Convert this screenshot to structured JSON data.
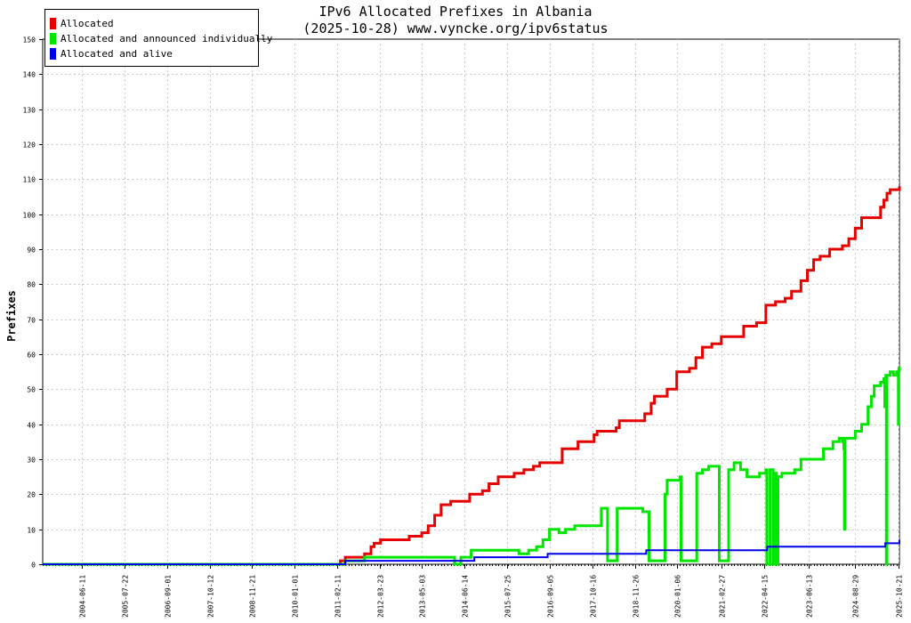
{
  "chart_data": {
    "type": "line",
    "title": "IPv6 Allocated Prefixes in Albania",
    "subtitle": "(2025-10-28) www.vyncke.org/ipv6status",
    "ylabel": "Prefixes",
    "xlabel": "",
    "ylim": [
      0,
      150
    ],
    "xlim": [
      "2003-06-01",
      "2025-10-28"
    ],
    "y_ticks": [
      0,
      10,
      20,
      30,
      40,
      50,
      60,
      70,
      80,
      90,
      100,
      110,
      120,
      130,
      140,
      150
    ],
    "x_tick_labels": [
      "2004-06-11",
      "2005-07-22",
      "2006-09-01",
      "2007-10-12",
      "2008-11-21",
      "2010-01-01",
      "2011-02-11",
      "2012-03-23",
      "2013-05-03",
      "2014-06-14",
      "2015-07-25",
      "2016-09-05",
      "2017-10-16",
      "2018-11-26",
      "2020-01-06",
      "2021-02-27",
      "2022-04-15",
      "2023-06-13",
      "2024-08-29",
      "2025-10-21"
    ],
    "grid": true,
    "legend_position": "top-left",
    "series": [
      {
        "name": "Allocated",
        "color": "#e60000",
        "points": [
          [
            "2003-06-01",
            0
          ],
          [
            "2011-03-01",
            0
          ],
          [
            "2011-03-15",
            1
          ],
          [
            "2011-05-01",
            2
          ],
          [
            "2011-09-01",
            2
          ],
          [
            "2011-11-01",
            3
          ],
          [
            "2012-01-01",
            5
          ],
          [
            "2012-02-01",
            6
          ],
          [
            "2012-04-01",
            7
          ],
          [
            "2012-12-01",
            7
          ],
          [
            "2013-01-01",
            8
          ],
          [
            "2013-05-01",
            9
          ],
          [
            "2013-07-01",
            11
          ],
          [
            "2013-09-01",
            14
          ],
          [
            "2013-11-01",
            17
          ],
          [
            "2014-02-01",
            18
          ],
          [
            "2014-06-01",
            18
          ],
          [
            "2014-08-01",
            20
          ],
          [
            "2014-12-01",
            21
          ],
          [
            "2015-02-01",
            23
          ],
          [
            "2015-05-01",
            25
          ],
          [
            "2015-10-01",
            26
          ],
          [
            "2016-01-01",
            27
          ],
          [
            "2016-04-01",
            28
          ],
          [
            "2016-06-01",
            29
          ],
          [
            "2016-12-01",
            29
          ],
          [
            "2017-01-01",
            33
          ],
          [
            "2017-06-01",
            35
          ],
          [
            "2017-11-01",
            37
          ],
          [
            "2017-12-01",
            38
          ],
          [
            "2018-06-01",
            39
          ],
          [
            "2018-07-01",
            41
          ],
          [
            "2019-01-01",
            41
          ],
          [
            "2019-03-01",
            43
          ],
          [
            "2019-05-01",
            46
          ],
          [
            "2019-06-01",
            48
          ],
          [
            "2019-10-01",
            50
          ],
          [
            "2020-01-01",
            55
          ],
          [
            "2020-05-01",
            56
          ],
          [
            "2020-07-01",
            59
          ],
          [
            "2020-09-01",
            62
          ],
          [
            "2020-12-01",
            63
          ],
          [
            "2021-03-01",
            65
          ],
          [
            "2021-08-01",
            65
          ],
          [
            "2021-10-01",
            68
          ],
          [
            "2022-02-01",
            69
          ],
          [
            "2022-05-01",
            74
          ],
          [
            "2022-08-01",
            75
          ],
          [
            "2022-11-01",
            76
          ],
          [
            "2023-01-01",
            78
          ],
          [
            "2023-04-01",
            81
          ],
          [
            "2023-06-01",
            84
          ],
          [
            "2023-08-01",
            87
          ],
          [
            "2023-10-01",
            88
          ],
          [
            "2024-01-01",
            90
          ],
          [
            "2024-05-01",
            91
          ],
          [
            "2024-07-01",
            93
          ],
          [
            "2024-09-01",
            96
          ],
          [
            "2024-11-01",
            99
          ],
          [
            "2025-04-01",
            99
          ],
          [
            "2025-05-01",
            102
          ],
          [
            "2025-06-01",
            104
          ],
          [
            "2025-07-01",
            106
          ],
          [
            "2025-08-01",
            107
          ],
          [
            "2025-10-15",
            107
          ],
          [
            "2025-10-28",
            108
          ]
        ]
      },
      {
        "name": "Allocated and announced individually",
        "color": "#00e600",
        "points": [
          [
            "2003-06-01",
            0
          ],
          [
            "2011-03-01",
            0
          ],
          [
            "2011-05-01",
            1
          ],
          [
            "2011-09-01",
            1
          ],
          [
            "2011-11-01",
            2
          ],
          [
            "2014-03-01",
            2
          ],
          [
            "2014-03-10",
            0
          ],
          [
            "2014-05-01",
            0
          ],
          [
            "2014-05-10",
            2
          ],
          [
            "2014-08-01",
            2
          ],
          [
            "2014-08-15",
            4
          ],
          [
            "2015-11-01",
            4
          ],
          [
            "2015-11-15",
            3
          ],
          [
            "2016-02-01",
            3
          ],
          [
            "2016-02-15",
            4
          ],
          [
            "2016-05-01",
            5
          ],
          [
            "2016-07-01",
            7
          ],
          [
            "2016-09-01",
            10
          ],
          [
            "2016-12-01",
            9
          ],
          [
            "2017-02-01",
            10
          ],
          [
            "2017-05-01",
            11
          ],
          [
            "2018-01-01",
            11
          ],
          [
            "2018-01-10",
            16
          ],
          [
            "2018-03-01",
            16
          ],
          [
            "2018-03-10",
            1
          ],
          [
            "2018-06-01",
            1
          ],
          [
            "2018-06-10",
            16
          ],
          [
            "2019-02-01",
            16
          ],
          [
            "2019-02-10",
            15
          ],
          [
            "2019-04-01",
            15
          ],
          [
            "2019-04-10",
            1
          ],
          [
            "2019-09-01",
            1
          ],
          [
            "2019-09-10",
            20
          ],
          [
            "2019-10-01",
            24
          ],
          [
            "2020-02-01",
            25
          ],
          [
            "2020-02-10",
            1
          ],
          [
            "2020-07-01",
            1
          ],
          [
            "2020-07-10",
            26
          ],
          [
            "2020-09-01",
            27
          ],
          [
            "2020-11-01",
            28
          ],
          [
            "2021-02-01",
            28
          ],
          [
            "2021-02-10",
            1
          ],
          [
            "2021-05-01",
            1
          ],
          [
            "2021-05-10",
            27
          ],
          [
            "2021-07-01",
            29
          ],
          [
            "2021-09-01",
            27
          ],
          [
            "2021-11-01",
            25
          ],
          [
            "2022-03-01",
            26
          ],
          [
            "2022-05-01",
            27
          ],
          [
            "2022-05-10",
            0
          ],
          [
            "2022-06-01",
            0
          ],
          [
            "2022-06-10",
            27
          ],
          [
            "2022-07-01",
            27
          ],
          [
            "2022-07-10",
            0
          ],
          [
            "2022-07-25",
            0
          ],
          [
            "2022-08-01",
            26
          ],
          [
            "2022-08-10",
            0
          ],
          [
            "2022-08-25",
            25
          ],
          [
            "2022-09-01",
            25
          ],
          [
            "2022-10-01",
            26
          ],
          [
            "2023-02-01",
            27
          ],
          [
            "2023-04-01",
            30
          ],
          [
            "2023-08-01",
            30
          ],
          [
            "2023-11-01",
            33
          ],
          [
            "2024-02-01",
            35
          ],
          [
            "2024-04-01",
            36
          ],
          [
            "2024-05-01",
            35
          ],
          [
            "2024-05-15",
            33
          ],
          [
            "2024-05-20",
            10
          ],
          [
            "2024-05-25",
            36
          ],
          [
            "2024-07-01",
            36
          ],
          [
            "2024-09-01",
            38
          ],
          [
            "2024-11-01",
            40
          ],
          [
            "2025-01-01",
            45
          ],
          [
            "2025-02-01",
            48
          ],
          [
            "2025-03-01",
            51
          ],
          [
            "2025-05-01",
            52
          ],
          [
            "2025-06-01",
            53
          ],
          [
            "2025-06-10",
            45
          ],
          [
            "2025-06-20",
            54
          ],
          [
            "2025-06-25",
            0
          ],
          [
            "2025-07-01",
            54
          ],
          [
            "2025-08-01",
            55
          ],
          [
            "2025-09-01",
            54
          ],
          [
            "2025-10-01",
            55
          ],
          [
            "2025-10-15",
            55
          ],
          [
            "2025-10-18",
            40
          ],
          [
            "2025-10-22",
            56
          ],
          [
            "2025-10-28",
            55
          ]
        ]
      },
      {
        "name": "Allocated and alive",
        "color": "#0000e6",
        "points": [
          [
            "2003-06-01",
            0
          ],
          [
            "2011-03-01",
            0
          ],
          [
            "2011-05-01",
            1
          ],
          [
            "2013-04-01",
            1
          ],
          [
            "2013-04-15",
            1
          ],
          [
            "2014-09-01",
            1
          ],
          [
            "2014-09-15",
            2
          ],
          [
            "2016-08-01",
            2
          ],
          [
            "2016-08-15",
            3
          ],
          [
            "2019-03-01",
            3
          ],
          [
            "2019-03-15",
            4
          ],
          [
            "2022-05-01",
            4
          ],
          [
            "2022-05-15",
            5
          ],
          [
            "2025-06-01",
            5
          ],
          [
            "2025-06-15",
            6
          ],
          [
            "2025-10-15",
            6
          ],
          [
            "2025-10-28",
            7
          ]
        ]
      }
    ]
  }
}
